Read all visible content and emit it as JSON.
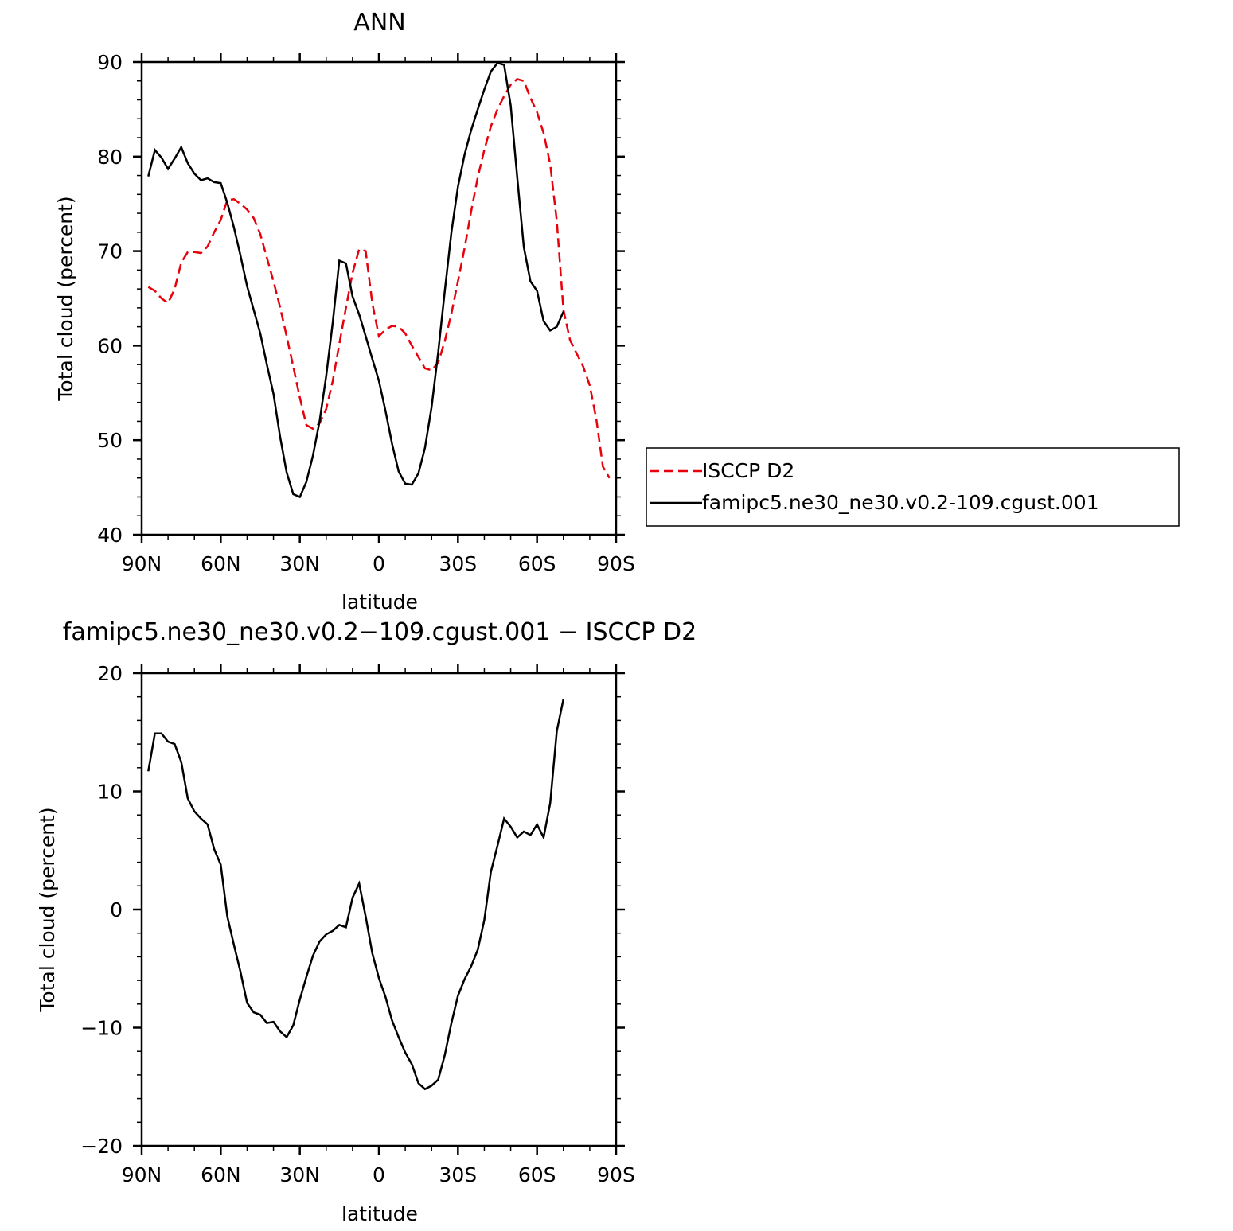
{
  "chart_data": [
    {
      "type": "line",
      "title": "ANN",
      "xlabel": "latitude",
      "ylabel": "Total cloud (percent)",
      "xlim": [
        90,
        -90
      ],
      "ylim": [
        40,
        90
      ],
      "xticks": [
        {
          "value": 90,
          "label": "90N"
        },
        {
          "value": 60,
          "label": "60N"
        },
        {
          "value": 30,
          "label": "30N"
        },
        {
          "value": 0,
          "label": "0"
        },
        {
          "value": -30,
          "label": "30S"
        },
        {
          "value": -60,
          "label": "60S"
        },
        {
          "value": -90,
          "label": "90S"
        }
      ],
      "yticks": [
        {
          "value": 40,
          "label": "40"
        },
        {
          "value": 50,
          "label": "50"
        },
        {
          "value": 60,
          "label": "60"
        },
        {
          "value": 70,
          "label": "70"
        },
        {
          "value": 80,
          "label": "80"
        },
        {
          "value": 90,
          "label": "90"
        }
      ],
      "legend": {
        "placement": "right",
        "box": true
      },
      "series": [
        {
          "name": "ISCCP D2",
          "color": "#e8000b",
          "dash": "dashed",
          "points": [
            [
              87.5,
              66.2
            ],
            [
              85,
              65.8
            ],
            [
              82.5,
              65
            ],
            [
              80,
              64.5
            ],
            [
              77.5,
              66
            ],
            [
              75,
              68.8
            ],
            [
              72.5,
              69.9
            ],
            [
              70,
              69.9
            ],
            [
              67.5,
              69.8
            ],
            [
              65,
              70.5
            ],
            [
              62.5,
              72
            ],
            [
              60,
              73.3
            ],
            [
              57.5,
              75.4
            ],
            [
              55,
              75.5
            ],
            [
              52.5,
              75
            ],
            [
              50,
              74.4
            ],
            [
              47.5,
              73.5
            ],
            [
              45,
              71.8
            ],
            [
              42.5,
              69.3
            ],
            [
              40,
              66.8
            ],
            [
              37.5,
              64.1
            ],
            [
              35,
              61
            ],
            [
              32.5,
              57.8
            ],
            [
              30,
              54.5
            ],
            [
              27.5,
              51.6
            ],
            [
              25,
              51.2
            ],
            [
              22.5,
              51.8
            ],
            [
              20,
              53.3
            ],
            [
              17.5,
              56.3
            ],
            [
              15,
              60.2
            ],
            [
              12.5,
              64
            ],
            [
              10,
              67.7
            ],
            [
              7.5,
              70.2
            ],
            [
              5,
              70
            ],
            [
              2.5,
              64.5
            ],
            [
              0,
              61
            ],
            [
              -2.5,
              61.7
            ],
            [
              -5,
              62.1
            ],
            [
              -7.5,
              62
            ],
            [
              -10,
              61.3
            ],
            [
              -12.5,
              60
            ],
            [
              -15,
              58.8
            ],
            [
              -17.5,
              57.6
            ],
            [
              -20,
              57.4
            ],
            [
              -22.5,
              58.2
            ],
            [
              -25,
              60.5
            ],
            [
              -27.5,
              63.4
            ],
            [
              -30,
              66.8
            ],
            [
              -32.5,
              70.3
            ],
            [
              -35,
              74.2
            ],
            [
              -37.5,
              77.8
            ],
            [
              -40,
              80.7
            ],
            [
              -42.5,
              83.2
            ],
            [
              -45,
              85
            ],
            [
              -47.5,
              86.4
            ],
            [
              -50,
              87.6
            ],
            [
              -52.5,
              88.2
            ],
            [
              -55,
              88
            ],
            [
              -57.5,
              86.2
            ],
            [
              -60,
              84.7
            ],
            [
              -62.5,
              82.5
            ],
            [
              -65,
              79.2
            ],
            [
              -67.5,
              73.2
            ],
            [
              -70,
              63.8
            ],
            [
              -72.5,
              60.6
            ],
            [
              -75,
              59.2
            ],
            [
              -77.5,
              57.8
            ],
            [
              -80,
              55.8
            ],
            [
              -82.5,
              52.2
            ],
            [
              -85,
              47.2
            ],
            [
              -87.5,
              46
            ]
          ]
        },
        {
          "name": "famipc5.ne30_ne30.v0.2-109.cgust.001",
          "color": "#000000",
          "dash": "solid",
          "points": [
            [
              87.5,
              77.9
            ],
            [
              85,
              80.7
            ],
            [
              82.5,
              79.9
            ],
            [
              80,
              78.7
            ],
            [
              77.5,
              79.8
            ],
            [
              75,
              81
            ],
            [
              72.5,
              79.3
            ],
            [
              70,
              78.2
            ],
            [
              67.5,
              77.5
            ],
            [
              65,
              77.7
            ],
            [
              62.5,
              77.3
            ],
            [
              60,
              77.2
            ],
            [
              57.5,
              75.1
            ],
            [
              55,
              72.5
            ],
            [
              52.5,
              69.5
            ],
            [
              50,
              66.3
            ],
            [
              47.5,
              63.8
            ],
            [
              45,
              61.3
            ],
            [
              42.5,
              58
            ],
            [
              40,
              54.9
            ],
            [
              37.5,
              50.4
            ],
            [
              35,
              46.6
            ],
            [
              32.5,
              44.3
            ],
            [
              30,
              44
            ],
            [
              27.5,
              45.6
            ],
            [
              25,
              48.4
            ],
            [
              22.5,
              52
            ],
            [
              20,
              56.8
            ],
            [
              17.5,
              62.5
            ],
            [
              15,
              69
            ],
            [
              12.5,
              68.7
            ],
            [
              10,
              65.2
            ],
            [
              7.5,
              63.3
            ],
            [
              5,
              61
            ],
            [
              2.5,
              58.6
            ],
            [
              0,
              56.3
            ],
            [
              -2.5,
              53.1
            ],
            [
              -5,
              49.6
            ],
            [
              -7.5,
              46.7
            ],
            [
              -10,
              45.4
            ],
            [
              -12.5,
              45.3
            ],
            [
              -15,
              46.5
            ],
            [
              -17.5,
              49.2
            ],
            [
              -20,
              53.5
            ],
            [
              -22.5,
              59.3
            ],
            [
              -25,
              65.8
            ],
            [
              -27.5,
              72
            ],
            [
              -30,
              76.8
            ],
            [
              -32.5,
              80.2
            ],
            [
              -35,
              82.8
            ],
            [
              -37.5,
              85
            ],
            [
              -40,
              87.1
            ],
            [
              -42.5,
              89
            ],
            [
              -45,
              89.9
            ],
            [
              -47.5,
              89.7
            ],
            [
              -50,
              85.4
            ],
            [
              -52.5,
              77.8
            ],
            [
              -55,
              70.4
            ],
            [
              -57.5,
              66.8
            ],
            [
              -60,
              65.8
            ],
            [
              -62.5,
              62.6
            ],
            [
              -65,
              61.6
            ],
            [
              -67.5,
              62
            ],
            [
              -70,
              63.6
            ]
          ]
        }
      ]
    },
    {
      "type": "line",
      "title": "famipc5.ne30_ne30.v0.2−109.cgust.001 − ISCCP D2",
      "xlabel": "latitude",
      "ylabel": "Total cloud (percent)",
      "xlim": [
        90,
        -90
      ],
      "ylim": [
        -20,
        20
      ],
      "xticks": [
        {
          "value": 90,
          "label": "90N"
        },
        {
          "value": 60,
          "label": "60N"
        },
        {
          "value": 30,
          "label": "30N"
        },
        {
          "value": 0,
          "label": "0"
        },
        {
          "value": -30,
          "label": "30S"
        },
        {
          "value": -60,
          "label": "60S"
        },
        {
          "value": -90,
          "label": "90S"
        }
      ],
      "yticks": [
        {
          "value": -20,
          "label": "−20"
        },
        {
          "value": -10,
          "label": "−10"
        },
        {
          "value": 0,
          "label": "0"
        },
        {
          "value": 10,
          "label": "10"
        },
        {
          "value": 20,
          "label": "20"
        }
      ],
      "series": [
        {
          "color": "#000000",
          "dash": "solid",
          "points": [
            [
              87.5,
              11.7
            ],
            [
              85,
              14.9
            ],
            [
              82.5,
              14.9
            ],
            [
              80,
              14.2
            ],
            [
              77.5,
              14
            ],
            [
              75,
              12.5
            ],
            [
              72.5,
              9.4
            ],
            [
              70,
              8.3
            ],
            [
              67.5,
              7.7
            ],
            [
              65,
              7.2
            ],
            [
              62.5,
              5.1
            ],
            [
              60,
              3.8
            ],
            [
              57.5,
              -0.6
            ],
            [
              55,
              -3
            ],
            [
              52.5,
              -5.3
            ],
            [
              50,
              -7.9
            ],
            [
              47.5,
              -8.7
            ],
            [
              45,
              -8.9
            ],
            [
              42.5,
              -9.6
            ],
            [
              40,
              -9.5
            ],
            [
              37.5,
              -10.3
            ],
            [
              35,
              -10.8
            ],
            [
              32.5,
              -9.8
            ],
            [
              30,
              -7.6
            ],
            [
              27.5,
              -5.7
            ],
            [
              25,
              -3.9
            ],
            [
              22.5,
              -2.7
            ],
            [
              20,
              -2.1
            ],
            [
              17.5,
              -1.8
            ],
            [
              15,
              -1.3
            ],
            [
              12.5,
              -1.5
            ],
            [
              10,
              1
            ],
            [
              7.5,
              2.2
            ],
            [
              5,
              -0.6
            ],
            [
              2.5,
              -3.7
            ],
            [
              0,
              -5.8
            ],
            [
              -2.5,
              -7.4
            ],
            [
              -5,
              -9.4
            ],
            [
              -7.5,
              -10.8
            ],
            [
              -10,
              -12.1
            ],
            [
              -12.5,
              -13.1
            ],
            [
              -15,
              -14.7
            ],
            [
              -17.5,
              -15.2
            ],
            [
              -20,
              -14.9
            ],
            [
              -22.5,
              -14.4
            ],
            [
              -25,
              -12.3
            ],
            [
              -27.5,
              -9.6
            ],
            [
              -30,
              -7.3
            ],
            [
              -32.5,
              -5.9
            ],
            [
              -35,
              -4.8
            ],
            [
              -37.5,
              -3.4
            ],
            [
              -40,
              -0.9
            ],
            [
              -42.5,
              3.2
            ],
            [
              -45,
              5.4
            ],
            [
              -47.5,
              7.7
            ],
            [
              -50,
              7
            ],
            [
              -52.5,
              6.1
            ],
            [
              -55,
              6.6
            ],
            [
              -57.5,
              6.3
            ],
            [
              -60,
              7.2
            ],
            [
              -62.5,
              6.1
            ],
            [
              -65,
              9
            ],
            [
              -67.5,
              15.1
            ],
            [
              -70,
              17.8
            ]
          ]
        }
      ]
    }
  ]
}
